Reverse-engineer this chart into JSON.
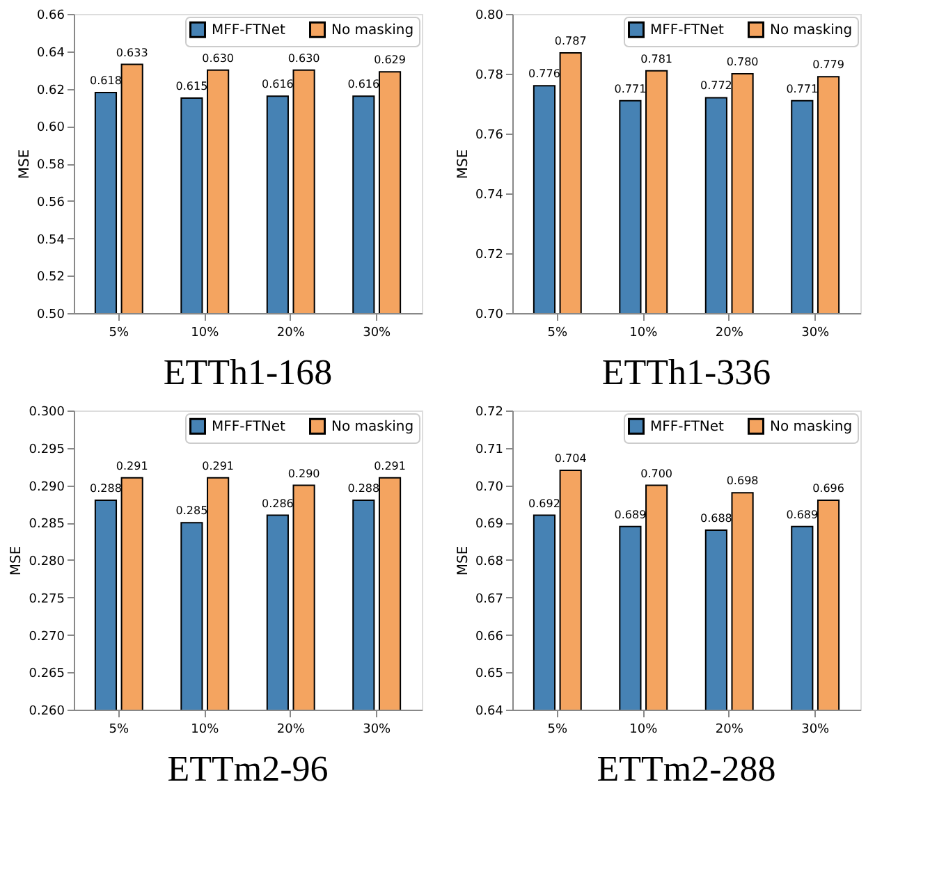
{
  "chart_data": [
    {
      "type": "bar",
      "title": "ETTh1-168",
      "ylabel": "MSE",
      "categories": [
        "5%",
        "10%",
        "20%",
        "30%"
      ],
      "series": [
        {
          "name": "MFF-FTNet",
          "color": "#4682b4",
          "values": [
            0.618,
            0.615,
            0.616,
            0.616
          ],
          "value_labels": [
            "0.618",
            "0.615",
            "0.616",
            "0.616"
          ]
        },
        {
          "name": "No masking",
          "color": "#f4a460",
          "values": [
            0.633,
            0.63,
            0.63,
            0.629
          ],
          "value_labels": [
            "0.633",
            "0.630",
            "0.630",
            "0.629"
          ]
        }
      ],
      "ylim": [
        0.5,
        0.66
      ],
      "yticks": [
        {
          "value": 0.5,
          "label": "0.50"
        },
        {
          "value": 0.52,
          "label": "0.52"
        },
        {
          "value": 0.54,
          "label": "0.54"
        },
        {
          "value": 0.56,
          "label": "0.56"
        },
        {
          "value": 0.58,
          "label": "0.58"
        },
        {
          "value": 0.6,
          "label": "0.60"
        },
        {
          "value": 0.62,
          "label": "0.62"
        },
        {
          "value": 0.64,
          "label": "0.64"
        },
        {
          "value": 0.66,
          "label": "0.66"
        }
      ],
      "legend": "top right",
      "grid": false
    },
    {
      "type": "bar",
      "title": "ETTh1-336",
      "ylabel": "MSE",
      "categories": [
        "5%",
        "10%",
        "20%",
        "30%"
      ],
      "series": [
        {
          "name": "MFF-FTNet",
          "color": "#4682b4",
          "values": [
            0.776,
            0.771,
            0.772,
            0.771
          ],
          "value_labels": [
            "0.776",
            "0.771",
            "0.772",
            "0.771"
          ]
        },
        {
          "name": "No masking",
          "color": "#f4a460",
          "values": [
            0.787,
            0.781,
            0.78,
            0.779
          ],
          "value_labels": [
            "0.787",
            "0.781",
            "0.780",
            "0.779"
          ]
        }
      ],
      "ylim": [
        0.7,
        0.8
      ],
      "yticks": [
        {
          "value": 0.7,
          "label": "0.70"
        },
        {
          "value": 0.72,
          "label": "0.72"
        },
        {
          "value": 0.74,
          "label": "0.74"
        },
        {
          "value": 0.76,
          "label": "0.76"
        },
        {
          "value": 0.78,
          "label": "0.78"
        },
        {
          "value": 0.8,
          "label": "0.80"
        }
      ],
      "legend": "top right",
      "grid": false
    },
    {
      "type": "bar",
      "title": "ETTm2-96",
      "ylabel": "MSE",
      "categories": [
        "5%",
        "10%",
        "20%",
        "30%"
      ],
      "series": [
        {
          "name": "MFF-FTNet",
          "color": "#4682b4",
          "values": [
            0.288,
            0.285,
            0.286,
            0.288
          ],
          "value_labels": [
            "0.288",
            "0.285",
            "0.286",
            "0.288"
          ]
        },
        {
          "name": "No masking",
          "color": "#f4a460",
          "values": [
            0.291,
            0.291,
            0.29,
            0.291
          ],
          "value_labels": [
            "0.291",
            "0.291",
            "0.290",
            "0.291"
          ]
        }
      ],
      "ylim": [
        0.26,
        0.3
      ],
      "yticks": [
        {
          "value": 0.26,
          "label": "0.260"
        },
        {
          "value": 0.265,
          "label": "0.265"
        },
        {
          "value": 0.27,
          "label": "0.270"
        },
        {
          "value": 0.275,
          "label": "0.275"
        },
        {
          "value": 0.28,
          "label": "0.280"
        },
        {
          "value": 0.285,
          "label": "0.285"
        },
        {
          "value": 0.29,
          "label": "0.290"
        },
        {
          "value": 0.295,
          "label": "0.295"
        },
        {
          "value": 0.3,
          "label": "0.300"
        }
      ],
      "legend": "top right",
      "grid": false
    },
    {
      "type": "bar",
      "title": "ETTm2-288",
      "ylabel": "MSE",
      "categories": [
        "5%",
        "10%",
        "20%",
        "30%"
      ],
      "series": [
        {
          "name": "MFF-FTNet",
          "color": "#4682b4",
          "values": [
            0.692,
            0.689,
            0.688,
            0.689
          ],
          "value_labels": [
            "0.692",
            "0.689",
            "0.688",
            "0.689"
          ]
        },
        {
          "name": "No masking",
          "color": "#f4a460",
          "values": [
            0.704,
            0.7,
            0.698,
            0.696
          ],
          "value_labels": [
            "0.704",
            "0.700",
            "0.698",
            "0.696"
          ]
        }
      ],
      "ylim": [
        0.64,
        0.72
      ],
      "yticks": [
        {
          "value": 0.64,
          "label": "0.64"
        },
        {
          "value": 0.65,
          "label": "0.65"
        },
        {
          "value": 0.66,
          "label": "0.66"
        },
        {
          "value": 0.67,
          "label": "0.67"
        },
        {
          "value": 0.68,
          "label": "0.68"
        },
        {
          "value": 0.69,
          "label": "0.69"
        },
        {
          "value": 0.7,
          "label": "0.70"
        },
        {
          "value": 0.71,
          "label": "0.71"
        },
        {
          "value": 0.72,
          "label": "0.72"
        }
      ],
      "legend": "top right",
      "grid": false
    }
  ]
}
